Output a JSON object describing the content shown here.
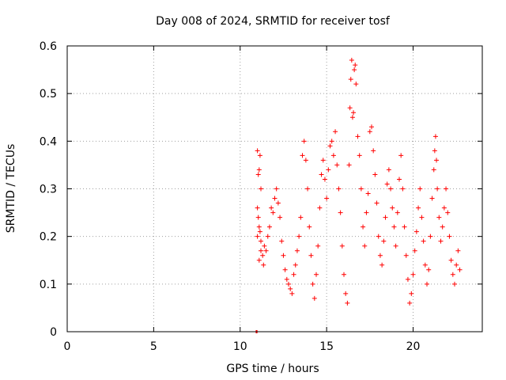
{
  "chart_data": {
    "type": "scatter",
    "title": "Day 008 of 2024, SRMTID for receiver tosf",
    "xlabel": "GPS time / hours",
    "ylabel": "SRMTID / TECUs",
    "xlim": [
      0,
      24
    ],
    "ylim": [
      0,
      0.6
    ],
    "xticks": [
      0,
      5,
      10,
      15,
      20
    ],
    "yticks": [
      0,
      0.1,
      0.2,
      0.3,
      0.4,
      0.5,
      0.6
    ],
    "xtick_labels": [
      "0",
      "5",
      "10",
      "15",
      "20"
    ],
    "ytick_labels": [
      "0",
      "0.1",
      "0.2",
      "0.3",
      "0.4",
      "0.5",
      "0.6"
    ],
    "grid": true,
    "marker": "+",
    "color": "#ff0000",
    "zero_segment": {
      "x_start": 10.9,
      "x_end": 11.0,
      "y": 0
    },
    "series": [
      {
        "name": "SRMTID",
        "points": [
          [
            11.0,
            0.38
          ],
          [
            11.05,
            0.33
          ],
          [
            11.1,
            0.34
          ],
          [
            11.15,
            0.37
          ],
          [
            11.2,
            0.3
          ],
          [
            11.0,
            0.26
          ],
          [
            11.05,
            0.24
          ],
          [
            11.1,
            0.22
          ],
          [
            11.15,
            0.21
          ],
          [
            11.2,
            0.19
          ],
          [
            11.0,
            0.2
          ],
          [
            11.1,
            0.15
          ],
          [
            11.2,
            0.17
          ],
          [
            11.3,
            0.16
          ],
          [
            11.35,
            0.14
          ],
          [
            11.4,
            0.18
          ],
          [
            11.5,
            0.17
          ],
          [
            11.6,
            0.2
          ],
          [
            11.7,
            0.22
          ],
          [
            11.8,
            0.26
          ],
          [
            11.9,
            0.25
          ],
          [
            12.0,
            0.28
          ],
          [
            12.1,
            0.3
          ],
          [
            12.2,
            0.27
          ],
          [
            12.3,
            0.24
          ],
          [
            12.4,
            0.19
          ],
          [
            12.5,
            0.16
          ],
          [
            12.6,
            0.13
          ],
          [
            12.7,
            0.11
          ],
          [
            12.8,
            0.1
          ],
          [
            12.9,
            0.09
          ],
          [
            13.0,
            0.08
          ],
          [
            13.1,
            0.12
          ],
          [
            13.2,
            0.14
          ],
          [
            13.3,
            0.17
          ],
          [
            13.4,
            0.2
          ],
          [
            13.5,
            0.24
          ],
          [
            13.6,
            0.37
          ],
          [
            13.7,
            0.4
          ],
          [
            13.8,
            0.36
          ],
          [
            13.9,
            0.3
          ],
          [
            14.0,
            0.22
          ],
          [
            14.1,
            0.16
          ],
          [
            14.2,
            0.1
          ],
          [
            14.3,
            0.07
          ],
          [
            14.4,
            0.12
          ],
          [
            14.5,
            0.18
          ],
          [
            14.6,
            0.26
          ],
          [
            14.7,
            0.33
          ],
          [
            14.8,
            0.36
          ],
          [
            14.9,
            0.32
          ],
          [
            15.0,
            0.28
          ],
          [
            15.1,
            0.34
          ],
          [
            15.2,
            0.39
          ],
          [
            15.3,
            0.4
          ],
          [
            15.4,
            0.37
          ],
          [
            15.5,
            0.42
          ],
          [
            15.6,
            0.35
          ],
          [
            15.7,
            0.3
          ],
          [
            15.8,
            0.25
          ],
          [
            15.9,
            0.18
          ],
          [
            16.0,
            0.12
          ],
          [
            16.1,
            0.08
          ],
          [
            16.2,
            0.06
          ],
          [
            16.3,
            0.35
          ],
          [
            16.35,
            0.47
          ],
          [
            16.4,
            0.53
          ],
          [
            16.45,
            0.57
          ],
          [
            16.5,
            0.45
          ],
          [
            16.55,
            0.46
          ],
          [
            16.6,
            0.55
          ],
          [
            16.65,
            0.56
          ],
          [
            16.7,
            0.52
          ],
          [
            16.8,
            0.41
          ],
          [
            16.9,
            0.37
          ],
          [
            17.0,
            0.3
          ],
          [
            17.1,
            0.22
          ],
          [
            17.2,
            0.18
          ],
          [
            17.3,
            0.25
          ],
          [
            17.4,
            0.29
          ],
          [
            17.5,
            0.42
          ],
          [
            17.6,
            0.43
          ],
          [
            17.7,
            0.38
          ],
          [
            17.8,
            0.33
          ],
          [
            17.9,
            0.27
          ],
          [
            18.0,
            0.2
          ],
          [
            18.1,
            0.16
          ],
          [
            18.2,
            0.14
          ],
          [
            18.3,
            0.19
          ],
          [
            18.4,
            0.24
          ],
          [
            18.5,
            0.31
          ],
          [
            18.6,
            0.34
          ],
          [
            18.7,
            0.3
          ],
          [
            18.8,
            0.26
          ],
          [
            18.9,
            0.22
          ],
          [
            19.0,
            0.18
          ],
          [
            19.1,
            0.25
          ],
          [
            19.2,
            0.32
          ],
          [
            19.3,
            0.37
          ],
          [
            19.4,
            0.3
          ],
          [
            19.5,
            0.22
          ],
          [
            19.6,
            0.16
          ],
          [
            19.7,
            0.11
          ],
          [
            19.8,
            0.06
          ],
          [
            19.9,
            0.08
          ],
          [
            20.0,
            0.12
          ],
          [
            20.1,
            0.17
          ],
          [
            20.2,
            0.21
          ],
          [
            20.3,
            0.26
          ],
          [
            20.4,
            0.3
          ],
          [
            20.5,
            0.24
          ],
          [
            20.6,
            0.19
          ],
          [
            20.7,
            0.14
          ],
          [
            20.8,
            0.1
          ],
          [
            20.9,
            0.13
          ],
          [
            21.0,
            0.2
          ],
          [
            21.1,
            0.28
          ],
          [
            21.2,
            0.34
          ],
          [
            21.25,
            0.38
          ],
          [
            21.3,
            0.41
          ],
          [
            21.35,
            0.36
          ],
          [
            21.4,
            0.3
          ],
          [
            21.5,
            0.24
          ],
          [
            21.6,
            0.19
          ],
          [
            21.7,
            0.22
          ],
          [
            21.8,
            0.26
          ],
          [
            21.9,
            0.3
          ],
          [
            22.0,
            0.25
          ],
          [
            22.1,
            0.2
          ],
          [
            22.2,
            0.15
          ],
          [
            22.3,
            0.12
          ],
          [
            22.4,
            0.1
          ],
          [
            22.5,
            0.14
          ],
          [
            22.6,
            0.17
          ],
          [
            22.7,
            0.13
          ]
        ]
      }
    ]
  }
}
